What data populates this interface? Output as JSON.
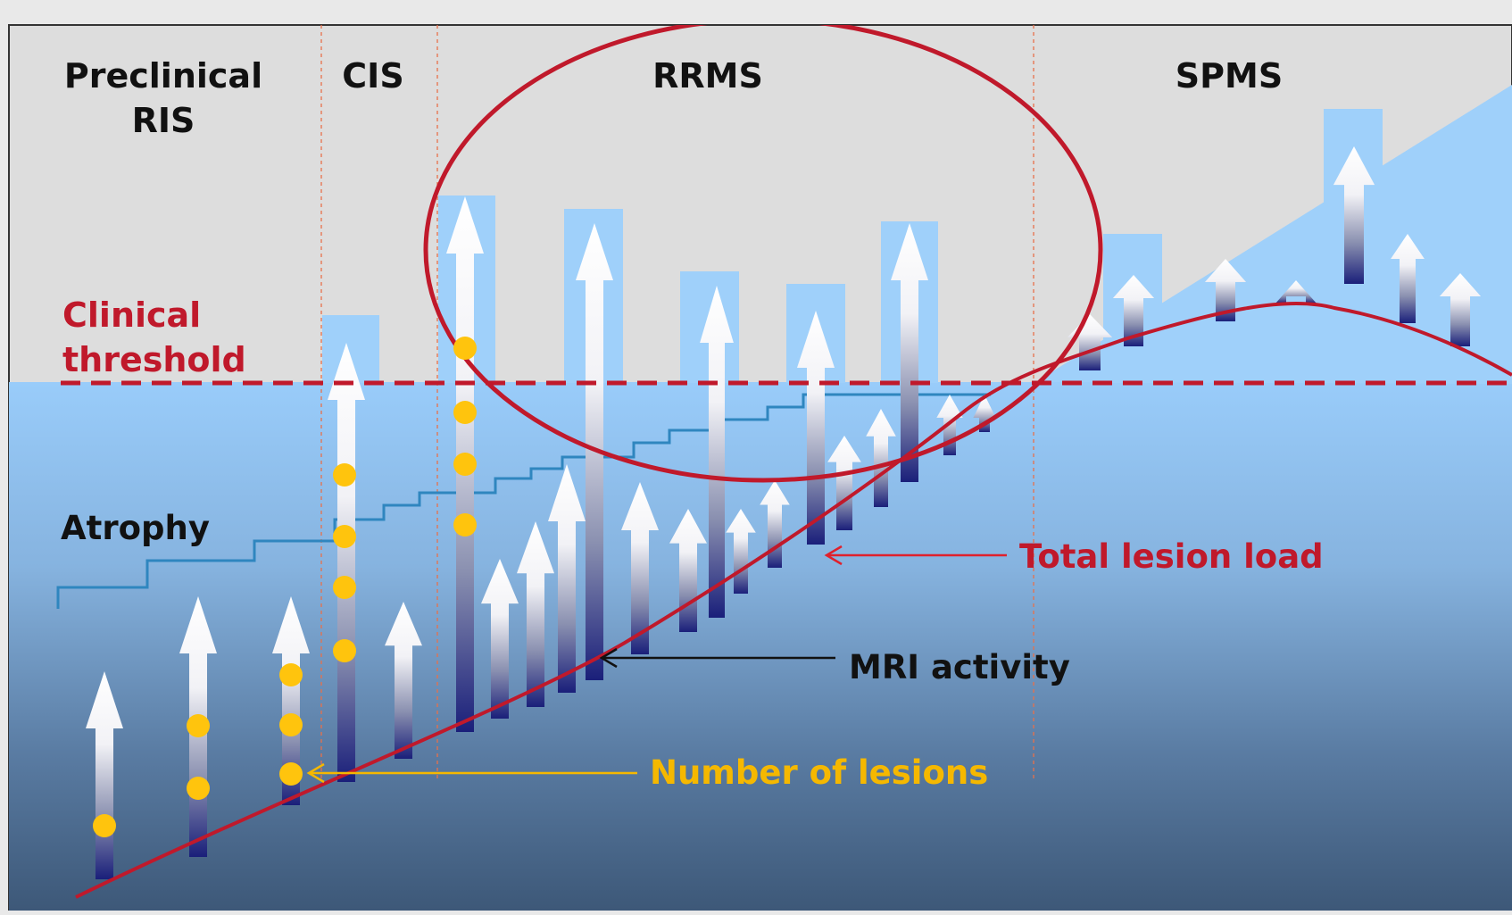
{
  "stages": [
    {
      "id": "preclinical",
      "lines": [
        "Preclinical",
        "RIS"
      ]
    },
    {
      "id": "cis",
      "lines": [
        "CIS"
      ]
    },
    {
      "id": "rrms",
      "lines": [
        "RRMS"
      ]
    },
    {
      "id": "spms",
      "lines": [
        "SPMS"
      ]
    }
  ],
  "labels": {
    "clinical_threshold": [
      "Clinical",
      "threshold"
    ],
    "atrophy": "Atrophy",
    "total_lesion_load": "Total lesion load",
    "mri_activity": "MRI activity",
    "number_of_lesions": "Number of lesions"
  },
  "colors": {
    "background_top": "#dddddd",
    "water_top": "#99ccfa",
    "water_bottom": "#3d5878",
    "bar": "#9fd0fa",
    "arrow_head": "#ffffff",
    "arrow_base": "#1a1f7a",
    "clinical_threshold": "#c0192b",
    "total_lesion_load": "#c0192b",
    "ellipse": "#c0192b",
    "atrophy_line": "#2f86bf",
    "lesion_dot": "#ffc40d",
    "number_of_lesions_label": "#f5b800",
    "mri_activity_label": "#111111",
    "stage_divider": "#e8704a"
  }
}
